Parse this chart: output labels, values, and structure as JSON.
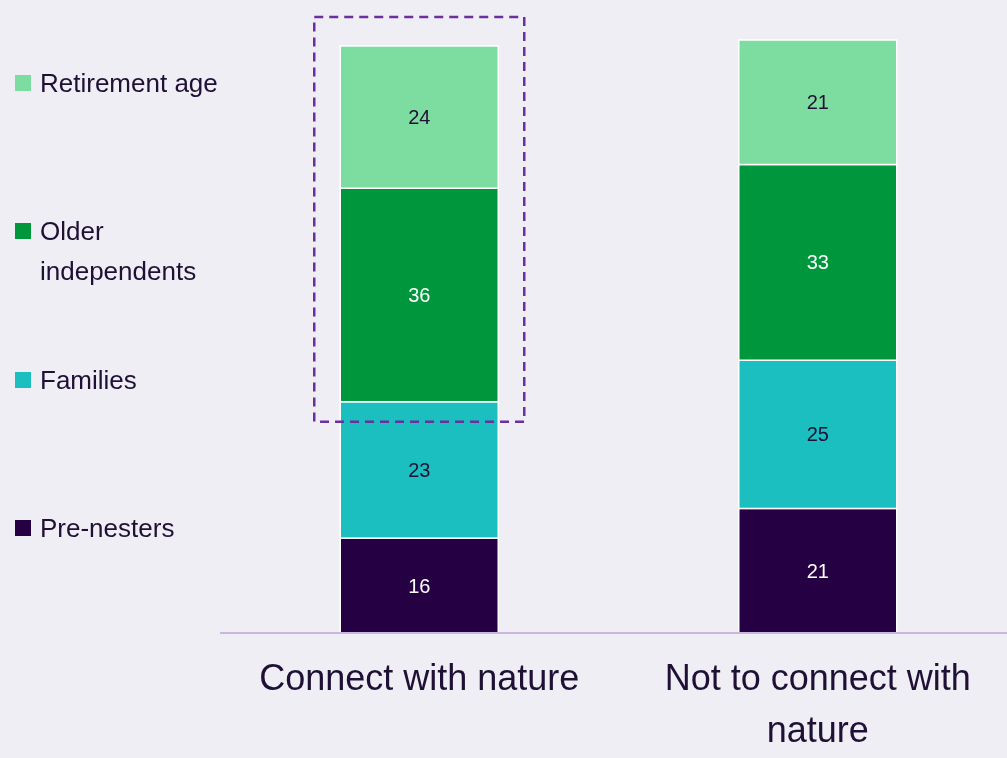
{
  "chart_data": {
    "type": "bar",
    "stacked": true,
    "data_labels": true,
    "legend": "left",
    "categories": [
      "Connect with nature",
      "Not to connect with nature"
    ],
    "series": [
      {
        "name": "Pre-nesters",
        "color": "#250042",
        "values": [
          16,
          21
        ]
      },
      {
        "name": "Families",
        "color": "#1bbfbf",
        "values": [
          23,
          25
        ]
      },
      {
        "name": "Older independents",
        "color": "#00963c",
        "values": [
          36,
          33
        ]
      },
      {
        "name": "Retirement age",
        "color": "#7ddca0",
        "values": [
          24,
          21
        ]
      }
    ]
  }
}
